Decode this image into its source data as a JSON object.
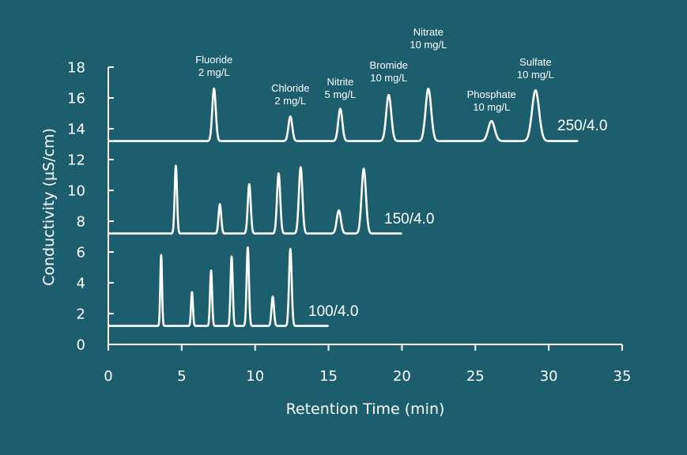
{
  "chart_data": {
    "type": "line",
    "xlabel": "Retention Time (min)",
    "ylabel": "Conductivity (µS/cm)",
    "xlim": [
      0,
      35
    ],
    "ylim": [
      0,
      18
    ],
    "x_ticks": [
      0,
      5,
      10,
      15,
      20,
      25,
      30,
      35
    ],
    "y_ticks": [
      0,
      2,
      4,
      6,
      8,
      10,
      12,
      14,
      16,
      18
    ],
    "grid": false,
    "series": [
      {
        "name": "250/4.0",
        "x_start": 0,
        "x_end": 32,
        "baseline": 13.2,
        "peaks": [
          {
            "x": 7.2,
            "y": 16.6,
            "w": 0.12
          },
          {
            "x": 12.4,
            "y": 14.8,
            "w": 0.13
          },
          {
            "x": 15.8,
            "y": 15.3,
            "w": 0.14
          },
          {
            "x": 19.1,
            "y": 16.2,
            "w": 0.17
          },
          {
            "x": 21.8,
            "y": 16.6,
            "w": 0.19
          },
          {
            "x": 26.1,
            "y": 14.5,
            "w": 0.22
          },
          {
            "x": 29.1,
            "y": 16.5,
            "w": 0.24
          }
        ]
      },
      {
        "name": "150/4.0",
        "x_start": 0,
        "x_end": 20,
        "baseline": 7.2,
        "peaks": [
          {
            "x": 4.6,
            "y": 11.6,
            "w": 0.08
          },
          {
            "x": 7.6,
            "y": 9.1,
            "w": 0.09
          },
          {
            "x": 9.6,
            "y": 10.4,
            "w": 0.1
          },
          {
            "x": 11.6,
            "y": 11.1,
            "w": 0.11
          },
          {
            "x": 13.1,
            "y": 11.5,
            "w": 0.12
          },
          {
            "x": 15.7,
            "y": 8.7,
            "w": 0.14
          },
          {
            "x": 17.4,
            "y": 11.4,
            "w": 0.15
          }
        ]
      },
      {
        "name": "100/4.0",
        "x_start": 0,
        "x_end": 15,
        "baseline": 1.2,
        "peaks": [
          {
            "x": 3.6,
            "y": 5.8,
            "w": 0.06
          },
          {
            "x": 5.7,
            "y": 3.4,
            "w": 0.065
          },
          {
            "x": 7.0,
            "y": 4.8,
            "w": 0.07
          },
          {
            "x": 8.4,
            "y": 5.7,
            "w": 0.075
          },
          {
            "x": 9.5,
            "y": 6.3,
            "w": 0.08
          },
          {
            "x": 11.2,
            "y": 3.1,
            "w": 0.085
          },
          {
            "x": 12.4,
            "y": 6.2,
            "w": 0.09
          }
        ]
      }
    ],
    "annotations": [
      {
        "name": "Fluoride",
        "amount": "2 mg/L",
        "x": 7.2
      },
      {
        "name": "Chloride",
        "amount": "2 mg/L",
        "x": 12.4
      },
      {
        "name": "Nitrite",
        "amount": "5 mg/L",
        "x": 15.8
      },
      {
        "name": "Bromide",
        "amount": "10 mg/L",
        "x": 19.1
      },
      {
        "name": "Nitrate",
        "amount": "10 mg/L",
        "x": 21.8
      },
      {
        "name": "Phosphate",
        "amount": "10 mg/L",
        "x": 26.1
      },
      {
        "name": "Sulfate",
        "amount": "10 mg/L",
        "x": 29.1
      }
    ]
  }
}
